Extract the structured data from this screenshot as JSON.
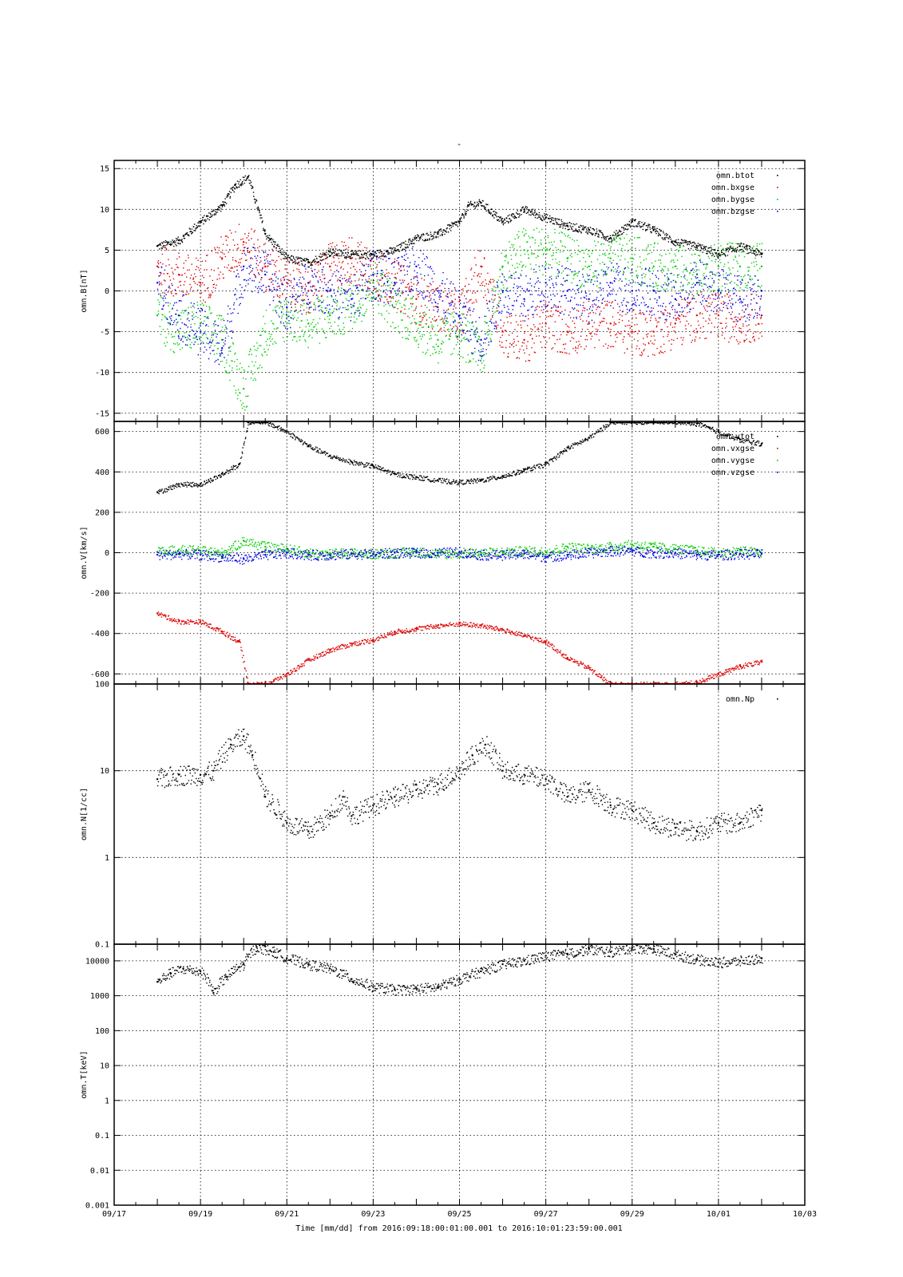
{
  "page_title": "-",
  "colors": {
    "btot": "#000000",
    "bx": "#dd0000",
    "by": "#00cc00",
    "bz": "#0000dd",
    "grid": "#000000"
  },
  "x_axis": {
    "label": "Time [mm/dd]  from 2016:09:18:00:01:00.001  to  2016:10:01:23:59:00.001",
    "range_days": [
      0,
      16
    ],
    "ticks": [
      {
        "day": 0,
        "label": "09/17"
      },
      {
        "day": 2,
        "label": "09/19"
      },
      {
        "day": 4,
        "label": "09/21"
      },
      {
        "day": 6,
        "label": "09/23"
      },
      {
        "day": 8,
        "label": "09/25"
      },
      {
        "day": 10,
        "label": "09/27"
      },
      {
        "day": 12,
        "label": "09/29"
      },
      {
        "day": 14,
        "label": "10/01"
      },
      {
        "day": 16,
        "label": "10/03"
      }
    ],
    "data_start_day": 1,
    "data_end_day": 15
  },
  "chart_data": [
    {
      "type": "scatter",
      "ylabel": "omn.B[nT]",
      "ylim": [
        -16,
        16
      ],
      "yticks": [
        15,
        10,
        5,
        0,
        -5,
        -10,
        -15
      ],
      "ytick_labels": [
        "15",
        "10",
        "5",
        "0",
        "-5",
        "-10",
        "-15"
      ],
      "legend": [
        "omn.btot",
        "omn.bxgse",
        "omn.bygse",
        "omn.bzgse"
      ],
      "legend_placement": "top-right",
      "grid": true,
      "series": [
        {
          "name": "omn.btot",
          "color": "#000000",
          "x": [
            1,
            1.5,
            2,
            2.5,
            2.8,
            3.1,
            3.5,
            4,
            4.5,
            5,
            5.5,
            6,
            6.5,
            7,
            7.5,
            8,
            8.2,
            8.5,
            9,
            9.5,
            10,
            10.5,
            11,
            11.5,
            12,
            12.5,
            13,
            13.5,
            14,
            14.5,
            15
          ],
          "y": [
            5.5,
            6.2,
            8.5,
            10.5,
            13,
            14,
            7,
            4,
            3.5,
            4.8,
            4.5,
            4.5,
            5,
            6.5,
            7,
            8.5,
            10.5,
            10.8,
            8.5,
            10,
            9,
            8,
            7.5,
            6.5,
            8.5,
            7.5,
            6,
            5.5,
            4.5,
            5.5,
            4.5
          ]
        },
        {
          "name": "omn.bxgse",
          "color": "#dd0000",
          "x": [
            1,
            1.5,
            2,
            2.5,
            3,
            3.5,
            4,
            4.5,
            5,
            5.5,
            6,
            6.5,
            7,
            7.5,
            8,
            8.5,
            9,
            9.5,
            10,
            10.5,
            11,
            11.5,
            12,
            12.5,
            13,
            13.5,
            14,
            14.5,
            15
          ],
          "y": [
            3,
            2,
            1,
            4,
            6,
            3,
            1,
            0,
            3,
            4,
            2,
            1,
            -1,
            -2,
            -3,
            3,
            -5,
            -6,
            -4,
            -5,
            -4,
            -4,
            -5,
            -5,
            -4,
            -3,
            -3,
            -3.5,
            -3
          ]
        },
        {
          "name": "omn.bygse",
          "color": "#00cc00",
          "x": [
            1,
            1.5,
            2,
            2.5,
            3,
            3.5,
            4,
            4.5,
            5,
            5.5,
            6,
            6.5,
            7,
            7.5,
            8,
            8.5,
            9,
            9.5,
            10,
            10.5,
            11,
            11.5,
            12,
            12.5,
            13,
            13.5,
            14,
            14.5,
            15
          ],
          "y": [
            -3,
            -5,
            -4,
            -6,
            -12,
            -5,
            -3,
            -4,
            -3,
            -2,
            1,
            -2,
            -4,
            -6,
            -5,
            -8,
            3,
            5,
            5,
            4,
            3,
            4,
            4,
            3,
            3,
            2,
            3,
            3,
            3
          ]
        },
        {
          "name": "omn.bzgse",
          "color": "#0000dd",
          "x": [
            1,
            1.5,
            2,
            2.5,
            3,
            3.5,
            4,
            4.5,
            5,
            5.5,
            6,
            6.5,
            7,
            7.5,
            8,
            8.5,
            9,
            9.5,
            10,
            10.5,
            11,
            11.5,
            12,
            12.5,
            13,
            13.5,
            14,
            14.5,
            15
          ],
          "y": [
            1,
            -3,
            -5,
            -7,
            3,
            2,
            -2,
            1,
            0,
            -1,
            2,
            1,
            3,
            0,
            -3,
            -6,
            0,
            -1,
            1,
            0,
            -1,
            1,
            0,
            0,
            -1,
            1,
            0,
            -1,
            0
          ]
        }
      ]
    },
    {
      "type": "scatter",
      "ylabel": "omn.V[km/s]",
      "ylim": [
        -650,
        650
      ],
      "yticks": [
        600,
        400,
        200,
        0,
        -200,
        -400,
        -600
      ],
      "ytick_labels": [
        "600",
        "400",
        "200",
        "0",
        "-200",
        "-400",
        "-600"
      ],
      "legend": [
        "omn.vtot",
        "omn.vxgse",
        "omn.vygse",
        "omn.vzgse"
      ],
      "legend_placement": "top-right",
      "grid": true,
      "series": [
        {
          "name": "omn.vtot",
          "color": "#000000",
          "x": [
            1,
            1.5,
            2,
            2.5,
            2.9,
            3.1,
            3.5,
            4,
            4.5,
            5,
            5.5,
            6,
            6.5,
            7,
            7.5,
            8,
            8.5,
            9,
            9.5,
            10,
            10.5,
            11,
            11.5,
            12,
            12.5,
            13,
            13.5,
            14,
            14.5,
            15
          ],
          "y": [
            300,
            340,
            340,
            390,
            440,
            650,
            650,
            600,
            530,
            480,
            450,
            430,
            390,
            375,
            360,
            350,
            360,
            380,
            410,
            440,
            520,
            570,
            650,
            650,
            650,
            650,
            640,
            600,
            560,
            540
          ]
        },
        {
          "name": "omn.vxgse",
          "color": "#dd0000",
          "x": [
            1,
            1.5,
            2,
            2.5,
            2.9,
            3.1,
            3.5,
            4,
            4.5,
            5,
            5.5,
            6,
            6.5,
            7,
            7.5,
            8,
            8.5,
            9,
            9.5,
            10,
            10.5,
            11,
            11.5,
            12,
            12.5,
            13,
            13.5,
            14,
            14.5,
            15
          ],
          "y": [
            -300,
            -340,
            -340,
            -390,
            -440,
            -650,
            -650,
            -600,
            -530,
            -480,
            -450,
            -430,
            -390,
            -375,
            -360,
            -350,
            -360,
            -380,
            -410,
            -440,
            -520,
            -570,
            -650,
            -650,
            -650,
            -650,
            -640,
            -600,
            -560,
            -540
          ]
        },
        {
          "name": "omn.vygse",
          "color": "#00cc00",
          "x": [
            1,
            1.5,
            2,
            2.5,
            3,
            3.5,
            4,
            4.5,
            5,
            5.5,
            6,
            6.5,
            7,
            7.5,
            8,
            8.5,
            9,
            9.5,
            10,
            10.5,
            11,
            11.5,
            12,
            12.5,
            13,
            13.5,
            14,
            14.5,
            15
          ],
          "y": [
            5,
            15,
            10,
            0,
            60,
            30,
            20,
            0,
            -5,
            0,
            -5,
            0,
            5,
            -5,
            0,
            0,
            5,
            10,
            5,
            30,
            20,
            30,
            40,
            30,
            20,
            10,
            0,
            10,
            0
          ]
        },
        {
          "name": "omn.vzgse",
          "color": "#0000dd",
          "x": [
            1,
            1.5,
            2,
            2.5,
            3,
            3.5,
            4,
            4.5,
            5,
            5.5,
            6,
            6.5,
            7,
            7.5,
            8,
            8.5,
            9,
            9.5,
            10,
            10.5,
            11,
            11.5,
            12,
            12.5,
            13,
            13.5,
            14,
            14.5,
            15
          ],
          "y": [
            -10,
            -5,
            -10,
            -20,
            -30,
            -10,
            0,
            -10,
            -10,
            -5,
            -5,
            0,
            0,
            0,
            5,
            -10,
            -10,
            -5,
            -20,
            -10,
            0,
            10,
            10,
            0,
            0,
            -10,
            -10,
            -5,
            -5
          ]
        }
      ]
    },
    {
      "type": "scatter",
      "ylabel": "omn.N[1/cc]",
      "yscale": "log",
      "ylim": [
        0.1,
        100
      ],
      "yticks": [
        100,
        10,
        1,
        0.1
      ],
      "ytick_labels": [
        "100",
        "10",
        "1",
        "0.1"
      ],
      "legend": [
        "omn.Np"
      ],
      "legend_placement": "top-right",
      "grid": true,
      "series": [
        {
          "name": "omn.Np",
          "color": "#000000",
          "x": [
            1,
            1.5,
            2,
            2.3,
            2.7,
            3,
            3.2,
            3.5,
            4,
            4.5,
            5,
            5.3,
            5.5,
            6,
            6.5,
            7,
            7.5,
            8,
            8.3,
            8.6,
            9,
            9.5,
            10,
            10.5,
            11,
            11.5,
            12,
            12.5,
            13,
            13.5,
            14,
            14.5,
            15
          ],
          "y": [
            8,
            9,
            9,
            10,
            20,
            25,
            15,
            5,
            2.5,
            2,
            3,
            5,
            3,
            4,
            5,
            6,
            7,
            10,
            15,
            20,
            10,
            9,
            8,
            5,
            6,
            4,
            3.5,
            2.5,
            2.2,
            2,
            2.5,
            2.5,
            3.5
          ]
        }
      ]
    },
    {
      "type": "scatter",
      "ylabel": "omn.T[keV]",
      "yscale": "log",
      "ylim": [
        0.001,
        30000
      ],
      "yticks": [
        10000,
        1000,
        100,
        10,
        1,
        0.1,
        0.01,
        0.001
      ],
      "ytick_labels": [
        "10000",
        "1000",
        "100",
        "10",
        "1",
        "0.1",
        "0.01",
        "0.001"
      ],
      "grid": true,
      "series": [
        {
          "name": "omn.T",
          "color": "#000000",
          "x": [
            1,
            1.3,
            1.6,
            2,
            2.3,
            2.6,
            3,
            3.3,
            3.7,
            4,
            4.5,
            5,
            5.5,
            6,
            6.5,
            7,
            7.5,
            8,
            8.5,
            9,
            9.5,
            10,
            10.5,
            11,
            11.5,
            12,
            12.5,
            13,
            13.5,
            14,
            14.5,
            15
          ],
          "y": [
            2500,
            4500,
            6000,
            5000,
            1200,
            3500,
            8000,
            25000,
            18000,
            12000,
            8000,
            6000,
            3000,
            1800,
            1500,
            1600,
            1800,
            3000,
            5000,
            8000,
            10000,
            14000,
            16000,
            22000,
            18000,
            24000,
            22000,
            15000,
            11000,
            9000,
            10000,
            12000
          ]
        }
      ]
    }
  ]
}
